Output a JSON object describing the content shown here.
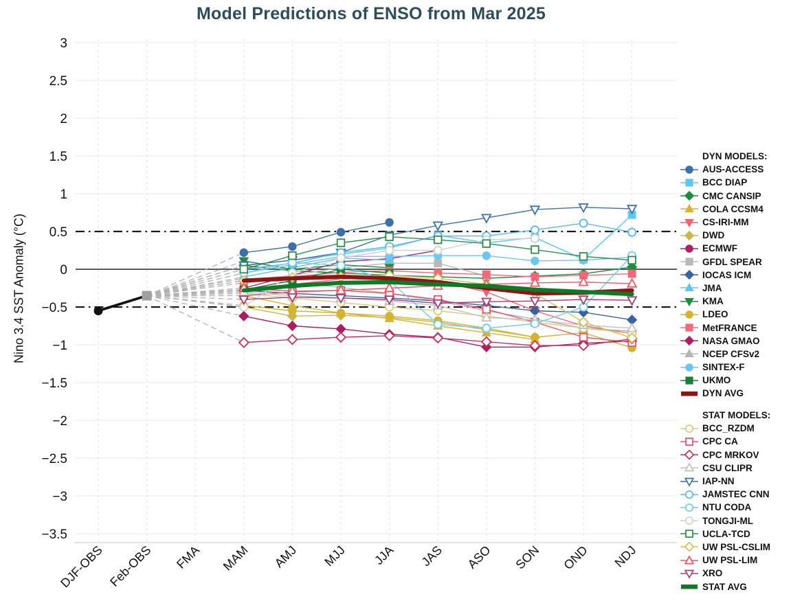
{
  "title": "Model Predictions of ENSO from Mar 2025",
  "chart_data": {
    "type": "line",
    "title": "Model Predictions of ENSO from Mar 2025",
    "xlabel": "",
    "ylabel": "Nino 3.4 SST Anomaly (°C)",
    "ylim": [
      -3.5,
      3
    ],
    "ytick_step": 0.5,
    "grid": true,
    "legend_position": "right",
    "categories": [
      "DJF-OBS",
      "Feb-OBS",
      "FMA",
      "MAM",
      "AMJ",
      "MJJ",
      "JJA",
      "JAS",
      "ASO",
      "SON",
      "OND",
      "NDJ"
    ],
    "forecast_categories": [
      "MAM",
      "AMJ",
      "MJJ",
      "JJA",
      "JAS",
      "ASO",
      "SON",
      "OND",
      "NDJ"
    ],
    "reference_lines": {
      "zero": 0,
      "elnino_threshold": 0.5,
      "lanina_threshold": -0.5
    },
    "observations": {
      "points": [
        {
          "label": "DJF-OBS",
          "value": -0.55,
          "marker": "circle",
          "color": "#111111"
        },
        {
          "label": "Feb-OBS",
          "value": -0.35,
          "marker": "square",
          "color": "#a0a0a0"
        }
      ],
      "line_color": "#111111"
    },
    "groups": [
      {
        "label": "DYN MODELS:",
        "series": [
          {
            "name": "AUS-ACCESS",
            "color": "#3d6fa8",
            "marker": "circle",
            "fill": "filled",
            "values": [
              0.22,
              0.3,
              0.49,
              0.62,
              null,
              null,
              null,
              null,
              null
            ]
          },
          {
            "name": "BCC DIAP",
            "color": "#5fc8ee",
            "marker": "square",
            "fill": "filled",
            "values": [
              0.05,
              0.12,
              0.2,
              0.28,
              0.45,
              0.35,
              0.42,
              0.13,
              0.72
            ]
          },
          {
            "name": "CMC CANSIP",
            "color": "#1d8c3f",
            "marker": "diamond",
            "fill": "filled",
            "values": [
              0.05,
              -0.02,
              -0.05,
              -0.08,
              -0.1,
              -0.12,
              -0.09,
              -0.06,
              0.03
            ]
          },
          {
            "name": "COLA CCSM4",
            "color": "#d4b43c",
            "marker": "triangle",
            "fill": "filled",
            "values": [
              -0.35,
              -0.48,
              -0.58,
              -0.65,
              -0.75,
              -0.84,
              -0.93,
              null,
              null
            ]
          },
          {
            "name": "CS-IRI-MM",
            "color": "#f2636f",
            "marker": "triangle-down",
            "fill": "filled",
            "values": [
              -0.28,
              -0.2,
              -0.13,
              -0.1,
              -0.16,
              -0.3,
              -0.55,
              -0.75,
              -0.85
            ]
          },
          {
            "name": "DWD",
            "color": "#c8b84a",
            "marker": "diamond",
            "fill": "filled",
            "values": [
              -0.5,
              -0.62,
              -0.61,
              -0.64,
              -0.7,
              -0.8,
              -0.9,
              null,
              null
            ]
          },
          {
            "name": "ECMWF",
            "color": "#b01e68",
            "marker": "circle",
            "fill": "filled",
            "values": [
              -0.25,
              -0.08,
              0.1,
              0.14,
              0.25,
              null,
              null,
              null,
              null
            ]
          },
          {
            "name": "GFDL SPEAR",
            "color": "#b8b8b8",
            "marker": "square",
            "fill": "filled",
            "values": [
              -0.15,
              -0.08,
              0.02,
              0.08,
              0.08,
              -0.09,
              null,
              null,
              null
            ]
          },
          {
            "name": "IOCAS ICM",
            "color": "#3a62a0",
            "marker": "diamond",
            "fill": "filled",
            "values": [
              -0.28,
              -0.32,
              -0.35,
              -0.38,
              -0.42,
              -0.48,
              -0.55,
              -0.57,
              -0.67
            ]
          },
          {
            "name": "JMA",
            "color": "#66c2e8",
            "marker": "triangle",
            "fill": "filled",
            "values": [
              -0.1,
              0.02,
              0.15,
              0.12,
              null,
              null,
              null,
              null,
              null
            ]
          },
          {
            "name": "KMA",
            "color": "#1d8c3f",
            "marker": "triangle-down",
            "fill": "filled",
            "values": [
              0.11,
              0.0,
              0.06,
              0.02,
              null,
              null,
              null,
              null,
              null
            ]
          },
          {
            "name": "LDEO",
            "color": "#d4b42c",
            "marker": "circle",
            "fill": "filled",
            "values": [
              -0.48,
              -0.55,
              -0.58,
              -0.62,
              -0.68,
              -0.78,
              -0.9,
              -0.84,
              -1.04
            ]
          },
          {
            "name": "MetFRANCE",
            "color": "#f4687a",
            "marker": "square",
            "fill": "filled",
            "values": [
              -0.18,
              -0.1,
              -0.04,
              -0.02,
              -0.05,
              -0.07,
              -0.1,
              -0.08,
              -0.06
            ]
          },
          {
            "name": "NASA GMAO",
            "color": "#a81e60",
            "marker": "diamond",
            "fill": "filled",
            "values": [
              -0.62,
              -0.75,
              -0.79,
              -0.86,
              -0.9,
              -1.03,
              -1.03,
              -0.98,
              -0.95
            ]
          },
          {
            "name": "NCEP CFSv2",
            "color": "#b4b4b4",
            "marker": "triangle",
            "fill": "filled",
            "values": [
              -0.12,
              -0.18,
              -0.24,
              -0.32,
              -0.42,
              -0.55,
              -0.66,
              -0.78,
              -0.82
            ]
          },
          {
            "name": "SINTEX-F",
            "color": "#6ac8f0",
            "marker": "circle",
            "fill": "filled",
            "values": [
              -0.05,
              0.06,
              0.17,
              0.17,
              0.18,
              0.18,
              0.11,
              0.12,
              0.16
            ]
          },
          {
            "name": "UKMO",
            "color": "#1a8038",
            "marker": "square",
            "fill": "filled",
            "values": [
              -0.27,
              -0.15,
              0.0,
              -0.05,
              null,
              null,
              null,
              null,
              null
            ]
          },
          {
            "name": "DYN AVG",
            "color": "#8c1515",
            "marker": "line",
            "fill": "filled",
            "avg": true,
            "values": [
              -0.15,
              -0.12,
              -0.1,
              -0.12,
              -0.17,
              -0.25,
              -0.32,
              -0.31,
              -0.28
            ]
          }
        ]
      },
      {
        "label": "STAT MODELS:",
        "series": [
          {
            "name": "BCC_RZDM",
            "color": "#d8cc82",
            "marker": "circle",
            "fill": "open",
            "values": [
              -0.32,
              -0.38,
              -0.44,
              -0.5,
              -0.55,
              -0.62,
              -0.7,
              -0.78,
              -0.85
            ]
          },
          {
            "name": "CPC CA",
            "color": "#e8506a",
            "marker": "square",
            "fill": "open",
            "values": [
              -0.35,
              -0.3,
              -0.28,
              -0.32,
              -0.4,
              -0.53,
              -0.7,
              -0.9,
              -0.97
            ]
          },
          {
            "name": "CPC MRKOV",
            "color": "#c03060",
            "marker": "diamond",
            "fill": "open",
            "values": [
              -0.97,
              -0.93,
              -0.9,
              -0.88,
              -0.91,
              -0.96,
              -1.01,
              -1.01,
              -0.92
            ]
          },
          {
            "name": "CSU CLIPR",
            "color": "#c0c0c0",
            "marker": "triangle",
            "fill": "open",
            "values": [
              -0.3,
              -0.35,
              -0.38,
              -0.42,
              -0.48,
              -0.64,
              -0.67,
              -0.74,
              -0.78
            ]
          },
          {
            "name": "IAP-NN",
            "color": "#3d6fa8",
            "marker": "triangle-down",
            "fill": "open",
            "values": [
              0.05,
              0.12,
              0.22,
              0.45,
              0.58,
              0.68,
              0.79,
              0.82,
              0.8
            ]
          },
          {
            "name": "JAMSTEC CNN",
            "color": "#58b8e8",
            "marker": "circle",
            "fill": "open",
            "values": [
              0.0,
              0.08,
              0.22,
              0.3,
              0.44,
              0.44,
              0.52,
              0.61,
              0.49
            ]
          },
          {
            "name": "NTU CODA",
            "color": "#70ccee",
            "marker": "circle",
            "fill": "open",
            "values": [
              -0.05,
              0.09,
              0.05,
              -0.15,
              -0.73,
              -0.78,
              -0.72,
              -0.5,
              0.18
            ]
          },
          {
            "name": "TONGJI-ML",
            "color": "#d0d0d0",
            "marker": "circle",
            "fill": "open",
            "values": [
              -0.5,
              -0.05,
              0.15,
              0.25,
              0.25,
              0.39,
              0.41,
              null,
              null
            ]
          },
          {
            "name": "UCLA-TCD",
            "color": "#2e8c50",
            "marker": "square",
            "fill": "open",
            "values": [
              0.0,
              0.18,
              0.35,
              0.43,
              0.39,
              0.34,
              0.26,
              0.17,
              0.12
            ]
          },
          {
            "name": "UW PSL-CSLIM",
            "color": "#d0c060",
            "marker": "diamond",
            "fill": "open",
            "values": [
              -0.15,
              -0.11,
              -0.1,
              -0.08,
              -0.12,
              -0.2,
              -0.32,
              -0.7,
              -0.91
            ]
          },
          {
            "name": "UW PSL-LIM",
            "color": "#ee5566",
            "marker": "triangle",
            "fill": "open",
            "values": [
              -0.25,
              -0.29,
              -0.28,
              -0.25,
              -0.22,
              -0.2,
              -0.18,
              -0.17,
              -0.19
            ]
          },
          {
            "name": "XRO",
            "color": "#a04078",
            "marker": "triangle-down",
            "fill": "open",
            "values": [
              -0.4,
              -0.37,
              -0.38,
              -0.4,
              -0.45,
              -0.43,
              -0.42,
              -0.4,
              -0.41
            ]
          },
          {
            "name": "STAT AVG",
            "color": "#0e7a28",
            "marker": "line",
            "fill": "filled",
            "avg": true,
            "values": [
              -0.28,
              -0.22,
              -0.18,
              -0.17,
              -0.2,
              -0.22,
              -0.27,
              -0.3,
              -0.33
            ]
          }
        ]
      }
    ]
  },
  "legend": {
    "dyn_header": "DYN MODELS:",
    "stat_header": "STAT MODELS:"
  }
}
